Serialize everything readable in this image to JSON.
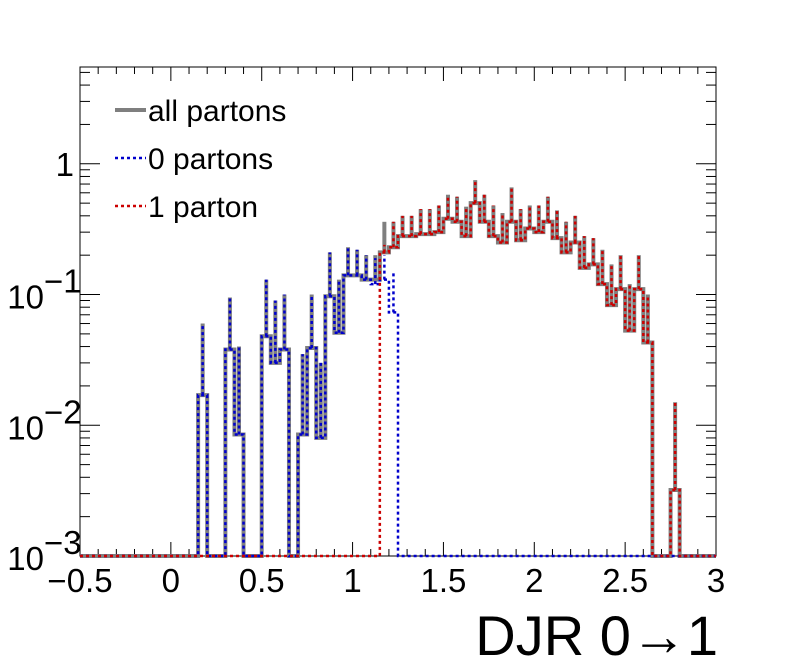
{
  "chart_data": {
    "type": "histogram",
    "title": "",
    "xlabel": "DJR 0→1",
    "ylabel": "",
    "xlim": [
      -0.5,
      3.0
    ],
    "ylim": [
      0.001,
      5.5
    ],
    "ylog": true,
    "grid": false,
    "legend_position": "top-left",
    "x_ticks": [
      {
        "v": -0.5,
        "label": "−0.5"
      },
      {
        "v": 0,
        "label": "0"
      },
      {
        "v": 0.5,
        "label": "0.5"
      },
      {
        "v": 1,
        "label": "1"
      },
      {
        "v": 1.5,
        "label": "1.5"
      },
      {
        "v": 2,
        "label": "2"
      },
      {
        "v": 2.5,
        "label": "2.5"
      },
      {
        "v": 3,
        "label": "3"
      }
    ],
    "y_ticks": [
      {
        "v": 0.001,
        "base": "10",
        "exp": "−3"
      },
      {
        "v": 0.01,
        "base": "10",
        "exp": "−2"
      },
      {
        "v": 0.1,
        "base": "10",
        "exp": "−1"
      },
      {
        "v": 1,
        "base": "1",
        "exp": ""
      }
    ],
    "bin_width": 0.05,
    "series": [
      {
        "name": "0 partons",
        "color": "#0000cc",
        "style": "dotted",
        "bins": [
          [
            0.15,
            0.017,
            0.06
          ],
          [
            0.2,
            0.001,
            0.001
          ],
          [
            0.25,
            0.001,
            0.001
          ],
          [
            0.3,
            0.038,
            0.095
          ],
          [
            0.35,
            0.0085,
            0.04
          ],
          [
            0.4,
            0.001,
            0.001
          ],
          [
            0.45,
            0.001,
            0.001
          ],
          [
            0.5,
            0.048,
            0.13
          ],
          [
            0.55,
            0.03,
            0.09
          ],
          [
            0.6,
            0.038,
            0.1
          ],
          [
            0.65,
            0.001,
            0.001
          ],
          [
            0.7,
            0.0085,
            0.035
          ],
          [
            0.75,
            0.039,
            0.1
          ],
          [
            0.8,
            0.008,
            0.03
          ],
          [
            0.85,
            0.097,
            0.21
          ],
          [
            0.9,
            0.051,
            0.13
          ],
          [
            0.95,
            0.14,
            0.23
          ],
          [
            1.0,
            0.14,
            0.22
          ],
          [
            1.05,
            0.13,
            0.2
          ],
          [
            1.1,
            0.12,
            0.19
          ],
          [
            1.15,
            0.13,
            0.2
          ],
          [
            1.2,
            0.073,
            0.15
          ]
        ]
      },
      {
        "name": "1 parton",
        "color": "#cc0000",
        "style": "dotted",
        "bins": [
          [
            1.1,
            0.001,
            0.001
          ],
          [
            1.15,
            0.21,
            0.24
          ],
          [
            1.2,
            0.23,
            0.36
          ],
          [
            1.25,
            0.28,
            0.4
          ],
          [
            1.3,
            0.28,
            0.4
          ],
          [
            1.35,
            0.29,
            0.45
          ],
          [
            1.4,
            0.29,
            0.45
          ],
          [
            1.45,
            0.3,
            0.48
          ],
          [
            1.5,
            0.38,
            0.58
          ],
          [
            1.55,
            0.36,
            0.56
          ],
          [
            1.6,
            0.28,
            0.47
          ],
          [
            1.65,
            0.5,
            0.75
          ],
          [
            1.7,
            0.36,
            0.58
          ],
          [
            1.75,
            0.28,
            0.48
          ],
          [
            1.8,
            0.25,
            0.42
          ],
          [
            1.85,
            0.36,
            0.66
          ],
          [
            1.9,
            0.26,
            0.45
          ],
          [
            1.95,
            0.32,
            0.48
          ],
          [
            2.0,
            0.3,
            0.48
          ],
          [
            2.05,
            0.36,
            0.56
          ],
          [
            2.1,
            0.27,
            0.44
          ],
          [
            2.15,
            0.21,
            0.36
          ],
          [
            2.2,
            0.25,
            0.4
          ],
          [
            2.25,
            0.16,
            0.28
          ],
          [
            2.3,
            0.17,
            0.27
          ],
          [
            2.35,
            0.12,
            0.22
          ],
          [
            2.4,
            0.083,
            0.17
          ],
          [
            2.45,
            0.11,
            0.2
          ],
          [
            2.5,
            0.053,
            0.12
          ],
          [
            2.55,
            0.11,
            0.2
          ],
          [
            2.6,
            0.043,
            0.1
          ],
          [
            2.65,
            0.001,
            0.001
          ],
          [
            2.7,
            0.001,
            0.001
          ],
          [
            2.75,
            0.0032,
            0.015
          ],
          [
            2.8,
            0.001,
            0.001
          ]
        ]
      },
      {
        "name": "all partons",
        "color": "#7f7f7f",
        "style": "solid",
        "bins": [
          [
            0.15,
            0.017,
            0.06
          ],
          [
            0.2,
            0.001,
            0.001
          ],
          [
            0.25,
            0.001,
            0.001
          ],
          [
            0.3,
            0.038,
            0.095
          ],
          [
            0.35,
            0.0085,
            0.04
          ],
          [
            0.4,
            0.001,
            0.001
          ],
          [
            0.45,
            0.001,
            0.001
          ],
          [
            0.5,
            0.048,
            0.13
          ],
          [
            0.55,
            0.03,
            0.09
          ],
          [
            0.6,
            0.038,
            0.1
          ],
          [
            0.65,
            0.001,
            0.001
          ],
          [
            0.7,
            0.0085,
            0.035
          ],
          [
            0.75,
            0.039,
            0.1
          ],
          [
            0.8,
            0.008,
            0.03
          ],
          [
            0.85,
            0.097,
            0.21
          ],
          [
            0.9,
            0.051,
            0.13
          ],
          [
            0.95,
            0.14,
            0.23
          ],
          [
            1.0,
            0.14,
            0.22
          ],
          [
            1.05,
            0.13,
            0.2
          ],
          [
            1.1,
            0.13,
            0.2
          ],
          [
            1.15,
            0.21,
            0.36
          ],
          [
            1.2,
            0.23,
            0.36
          ],
          [
            1.25,
            0.28,
            0.4
          ],
          [
            1.3,
            0.28,
            0.4
          ],
          [
            1.35,
            0.29,
            0.45
          ],
          [
            1.4,
            0.29,
            0.45
          ],
          [
            1.45,
            0.3,
            0.48
          ],
          [
            1.5,
            0.38,
            0.58
          ],
          [
            1.55,
            0.36,
            0.56
          ],
          [
            1.6,
            0.28,
            0.47
          ],
          [
            1.65,
            0.5,
            0.75
          ],
          [
            1.7,
            0.36,
            0.58
          ],
          [
            1.75,
            0.28,
            0.48
          ],
          [
            1.8,
            0.25,
            0.42
          ],
          [
            1.85,
            0.36,
            0.66
          ],
          [
            1.9,
            0.26,
            0.45
          ],
          [
            1.95,
            0.32,
            0.48
          ],
          [
            2.0,
            0.3,
            0.48
          ],
          [
            2.05,
            0.36,
            0.56
          ],
          [
            2.1,
            0.27,
            0.44
          ],
          [
            2.15,
            0.21,
            0.36
          ],
          [
            2.2,
            0.25,
            0.4
          ],
          [
            2.25,
            0.16,
            0.28
          ],
          [
            2.3,
            0.17,
            0.27
          ],
          [
            2.35,
            0.12,
            0.22
          ],
          [
            2.4,
            0.083,
            0.17
          ],
          [
            2.45,
            0.11,
            0.2
          ],
          [
            2.5,
            0.053,
            0.12
          ],
          [
            2.55,
            0.11,
            0.2
          ],
          [
            2.6,
            0.043,
            0.1
          ],
          [
            2.65,
            0.001,
            0.001
          ],
          [
            2.7,
            0.001,
            0.001
          ],
          [
            2.75,
            0.0032,
            0.015
          ],
          [
            2.8,
            0.001,
            0.001
          ]
        ]
      }
    ],
    "legend": [
      {
        "label": "all partons",
        "color": "#7f7f7f",
        "style": "solid"
      },
      {
        "label": "0 partons",
        "color": "#0000cc",
        "style": "dotted"
      },
      {
        "label": "1 parton",
        "color": "#cc0000",
        "style": "dotted"
      }
    ]
  }
}
